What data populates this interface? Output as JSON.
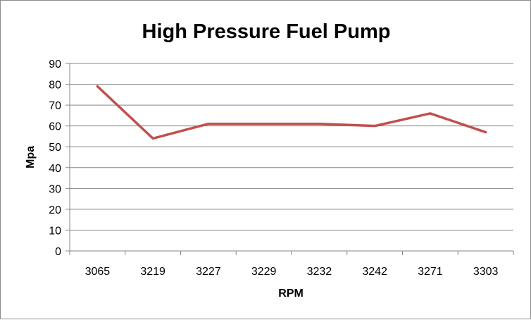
{
  "chart_data": {
    "type": "line",
    "title": "High Pressure Fuel Pump",
    "xlabel": "RPM",
    "ylabel": "Mpa",
    "categories": [
      "3065",
      "3219",
      "3227",
      "3229",
      "3232",
      "3242",
      "3271",
      "3303"
    ],
    "series": [
      {
        "values": [
          79,
          54,
          61,
          61,
          61,
          60,
          66,
          57
        ],
        "color": "#c0504d"
      }
    ],
    "ylim": [
      0,
      90
    ],
    "yticks": [
      0,
      10,
      20,
      30,
      40,
      50,
      60,
      70,
      80,
      90
    ],
    "grid": true,
    "legend": "none"
  }
}
